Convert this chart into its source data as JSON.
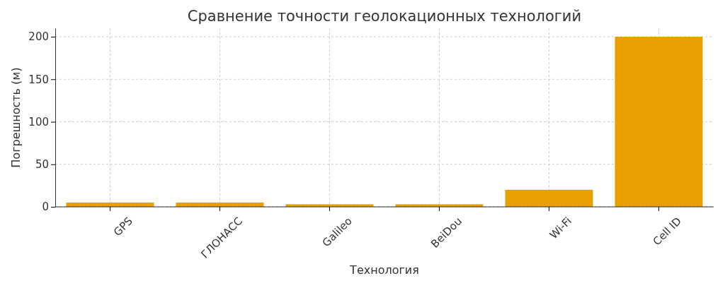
{
  "chart_data": {
    "type": "bar",
    "title": "Сравнение точности геолокационных технологий",
    "xlabel": "Технология",
    "ylabel": "Погрешность (м)",
    "categories": [
      "GPS",
      "ГЛОНАСС",
      "Galileo",
      "BeiDou",
      "Wi-Fi",
      "Cell ID"
    ],
    "values": [
      5,
      5,
      3,
      3,
      20,
      200
    ],
    "color": "#e8a000",
    "ylim": [
      0,
      210
    ],
    "yticks": [
      0,
      50,
      100,
      150,
      200
    ],
    "grid": true
  }
}
